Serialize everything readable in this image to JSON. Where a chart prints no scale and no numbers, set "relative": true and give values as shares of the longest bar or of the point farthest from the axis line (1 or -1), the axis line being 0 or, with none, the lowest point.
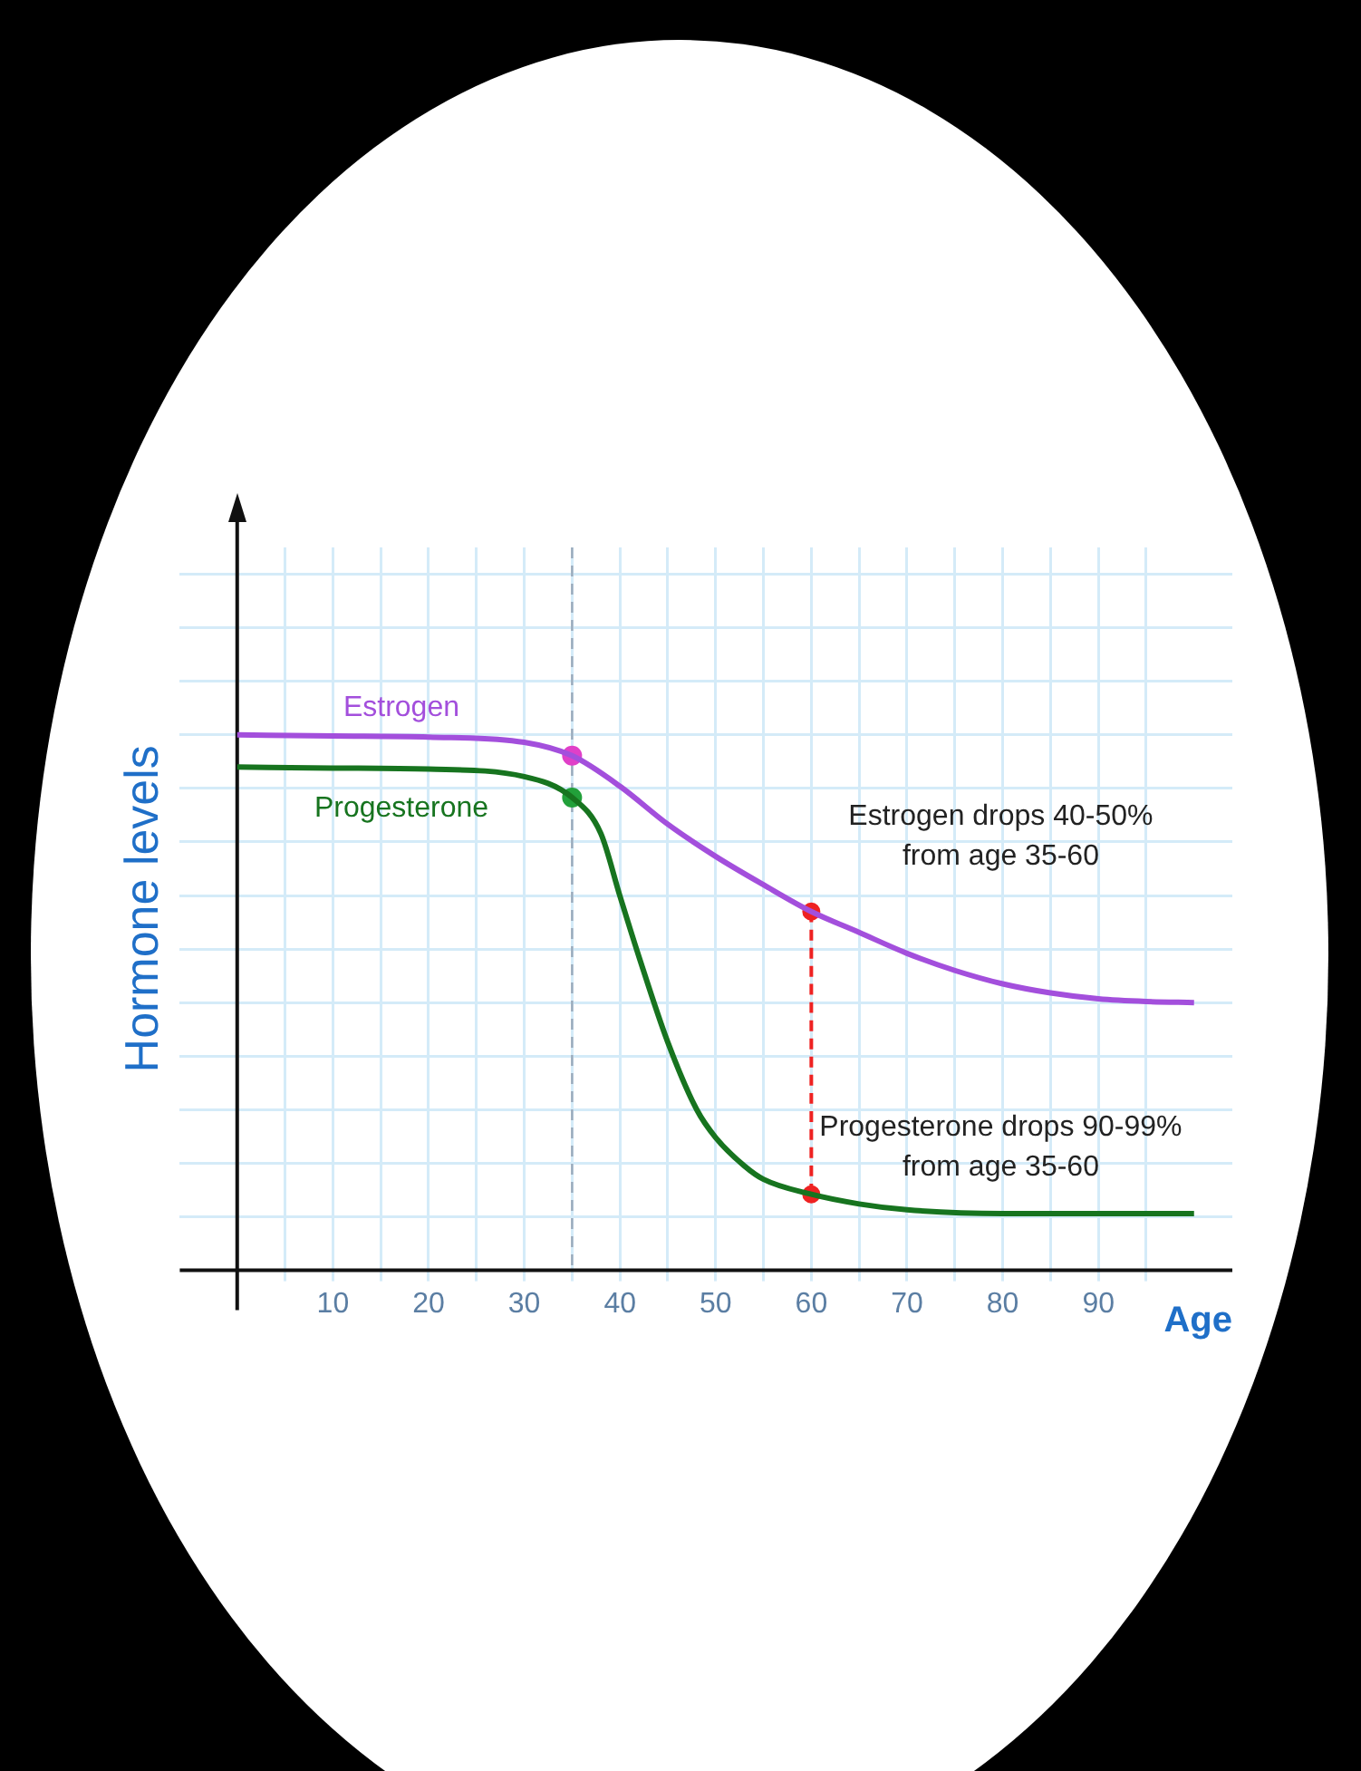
{
  "chart_data": {
    "type": "line",
    "relative": true,
    "ylabel": "Hormone levels",
    "xlabel": "Age",
    "grid": true,
    "legend": false,
    "xlim": [
      -6,
      104
    ],
    "xticks": [
      {
        "value": 5,
        "label": null
      },
      10,
      {
        "value": 15,
        "label": null
      },
      20,
      {
        "value": 25,
        "label": null
      },
      30,
      {
        "value": 35,
        "label": null
      },
      40,
      {
        "value": 45,
        "label": null
      },
      50,
      {
        "value": 55,
        "label": null
      },
      60,
      {
        "value": 65,
        "label": null
      },
      70,
      {
        "value": 75,
        "label": null
      },
      80,
      {
        "value": 85,
        "label": null
      },
      90,
      {
        "value": 95,
        "label": null
      }
    ],
    "series": [
      {
        "name": "Estrogen",
        "color": "#a34fdc",
        "marker": "none",
        "x": [
          0,
          10,
          20,
          30,
          35,
          40,
          45,
          50,
          55,
          60,
          65,
          70,
          75,
          80,
          85,
          90,
          95,
          100
        ],
        "values": [
          1,
          0.998,
          0.996,
          0.986,
          0.961,
          0.904,
          0.833,
          0.773,
          0.72,
          0.67,
          0.631,
          0.592,
          0.56,
          0.535,
          0.518,
          0.507,
          0.502,
          0.5
        ]
      },
      {
        "name": "Progesterone",
        "color": "#17741f",
        "marker": "none",
        "x": [
          0,
          10,
          20,
          30,
          35,
          38,
          40,
          42,
          45,
          48,
          50,
          53,
          55,
          60,
          65,
          70,
          80,
          90,
          100
        ],
        "values": [
          0.94,
          0.938,
          0.936,
          0.922,
          0.883,
          0.816,
          0.699,
          0.585,
          0.426,
          0.301,
          0.248,
          0.195,
          0.17,
          0.142,
          0.124,
          0.113,
          0.106,
          0.106,
          0.106
        ]
      },
      {
        "type": "line",
        "color": "#ee2222",
        "marker": "circle",
        "line_style": "dashed",
        "x": [
          60,
          60
        ],
        "values": [
          0.67,
          0.142
        ]
      },
      {
        "type": "scatter",
        "marker": "circle",
        "colors": [
          "#e040c8",
          "#22a03a"
        ],
        "x": [
          35,
          35
        ],
        "values": [
          0.961,
          0.883
        ]
      }
    ],
    "ref_lines": [
      {
        "axis": "x",
        "value": 35,
        "color": "#9aaabb",
        "line_style": "dashed"
      }
    ],
    "annotations": [
      "Estrogen drops 40-50%\nfrom age 35-60",
      "Progesterone drops 90-99%\nfrom age 35-60"
    ]
  }
}
